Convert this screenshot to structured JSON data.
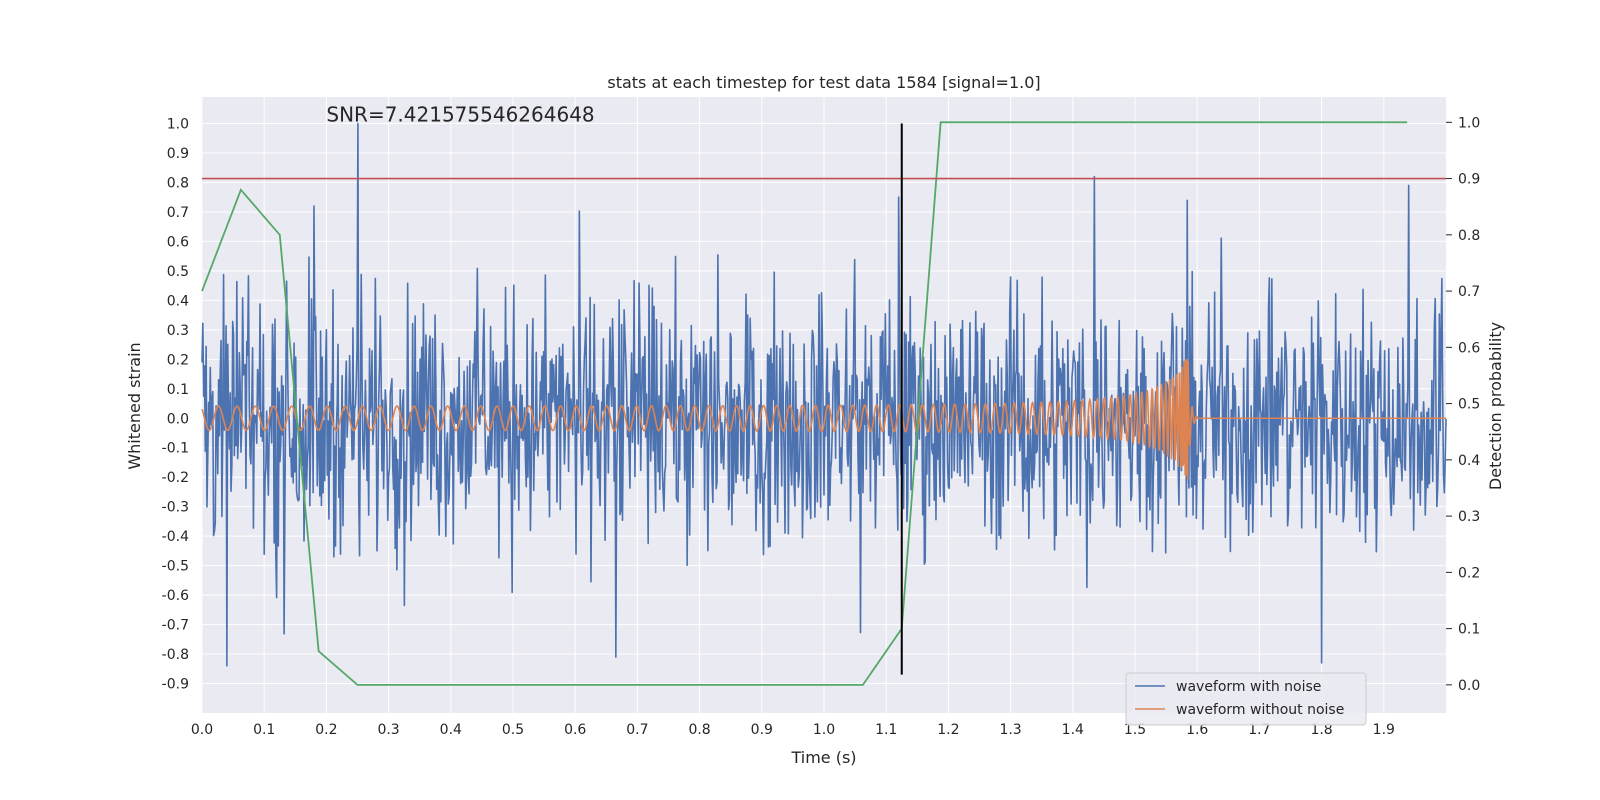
{
  "chart_data": {
    "type": "line",
    "title": "stats at each timestep for test data 1584 [signal=1.0]",
    "xlabel": "Time (s)",
    "ylabel_left": "Whitened strain",
    "ylabel_right": "Detection probability",
    "xlim": [
      0.0,
      2.0
    ],
    "ylim_left": [
      -1.0,
      1.09
    ],
    "ylim_right": [
      -0.05,
      1.045
    ],
    "x_ticks": [
      "0.0",
      "0.1",
      "0.2",
      "0.3",
      "0.4",
      "0.5",
      "0.6",
      "0.7",
      "0.8",
      "0.9",
      "1.0",
      "1.1",
      "1.2",
      "1.3",
      "1.4",
      "1.5",
      "1.6",
      "1.7",
      "1.8",
      "1.9"
    ],
    "y_left_ticks": [
      "1.0",
      "0.9",
      "0.8",
      "0.7",
      "0.6",
      "0.5",
      "0.4",
      "0.3",
      "0.2",
      "0.1",
      "0.0",
      "-0.1",
      "-0.2",
      "-0.3",
      "-0.4",
      "-0.5",
      "-0.6",
      "-0.7",
      "-0.8",
      "-0.9"
    ],
    "y_right_ticks": [
      "1.0",
      "0.9",
      "0.8",
      "0.7",
      "0.6",
      "0.5",
      "0.4",
      "0.3",
      "0.2",
      "0.1",
      "0.0"
    ],
    "annotation": "SNR=7.421575546264648",
    "annotation_at": {
      "x": 0.2,
      "y": 1.0
    },
    "series": [
      {
        "name": "waveform with noise",
        "color": "#4c72b0",
        "axis": "left",
        "kind": "noisy strain",
        "t_range": [
          0.0,
          2.0
        ],
        "amplitude_envelope": 0.35,
        "peaks": [
          [
            0.04,
            -0.84
          ],
          [
            0.25,
            1.0
          ],
          [
            0.18,
            0.72
          ],
          [
            0.665,
            -0.81
          ],
          [
            1.435,
            0.82
          ],
          [
            1.8,
            -0.83
          ],
          [
            1.94,
            0.79
          ],
          [
            1.12,
            0.75
          ]
        ]
      },
      {
        "name": "waveform without noise",
        "color": "#dd8452",
        "axis": "left",
        "kind": "chirp",
        "t_range": [
          0.0,
          1.585
        ],
        "amplitude_start": 0.04,
        "amplitude_peak": 0.22,
        "merger_time": 1.585
      },
      {
        "name": "detection probability",
        "color": "#55a868",
        "axis": "right",
        "x": [
          0.0,
          0.0625,
          0.125,
          0.1875,
          0.25,
          1.0625,
          1.125,
          1.1875,
          1.9375
        ],
        "y": [
          0.7,
          0.88,
          0.8,
          0.06,
          0.0,
          0.0,
          0.1,
          1.0,
          1.0
        ]
      }
    ],
    "threshold": {
      "axis": "right",
      "value": 0.9,
      "color": "#c44e52"
    },
    "vertical_marker": {
      "x": 1.125,
      "y_range_left": [
        -0.87,
        1.0
      ],
      "color": "#000000"
    },
    "legend": {
      "placement": "lower-right",
      "entries": [
        {
          "label": "waveform with noise",
          "color": "#4c72b0"
        },
        {
          "label": "waveform without noise",
          "color": "#dd8452"
        }
      ]
    },
    "style": {
      "background": "#eaeaf2",
      "grid": "#ffffff"
    }
  }
}
